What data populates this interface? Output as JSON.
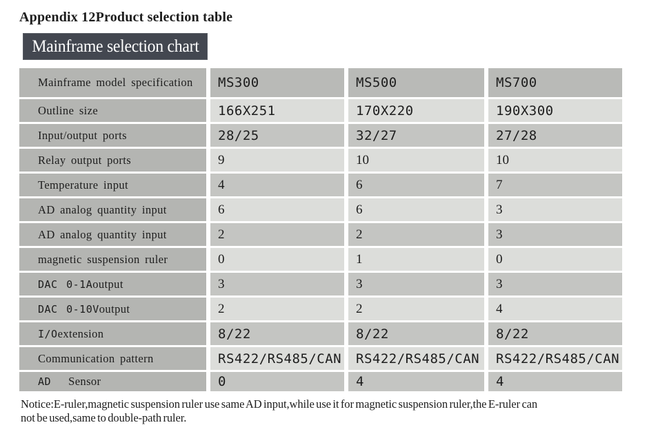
{
  "page": {
    "title": "Appendix 12Product selection table",
    "banner": "Mainframe selection chart",
    "notice_lines": [
      "Notice:E-ruler,magnetic suspension ruler use same AD input,while use it for magnetic suspension ruler,the E-ruler can",
      "not be used,same to double-path ruler."
    ]
  },
  "colors": {
    "banner_bg": "#434750",
    "banner_text": "#ffffff",
    "label_cell_bg": "#b4b5b2",
    "header_value_bg": "#b9bab7",
    "dark_value_bg": "#c4c5c2",
    "light_value_bg": "#dcddda",
    "text": "#1d1d1d",
    "page_bg": "#ffffff"
  },
  "table": {
    "columns": [
      "MS300",
      "MS500",
      "MS700"
    ],
    "rows": [
      {
        "label_mono": "",
        "label": "Mainframe model specification",
        "values": [
          "MS300",
          "MS500",
          "MS700"
        ],
        "value_font": "mono",
        "shade": "header",
        "tall": true
      },
      {
        "label_mono": "",
        "label": "Outline size",
        "values": [
          "166X251",
          "170X220",
          "190X300"
        ],
        "value_font": "mono",
        "shade": "light"
      },
      {
        "label_mono": "",
        "label": "Input/output ports",
        "values": [
          "28/25",
          "32/27",
          "27/28"
        ],
        "value_font": "mono",
        "shade": "dark"
      },
      {
        "label_mono": "",
        "label": "Relay output ports",
        "values": [
          "9",
          "10",
          "10"
        ],
        "value_font": "serif",
        "shade": "light"
      },
      {
        "label_mono": "",
        "label": "Temperature input",
        "values": [
          "4",
          "6",
          "7"
        ],
        "value_font": "serif",
        "shade": "dark"
      },
      {
        "label_mono": "",
        "label": "AD analog quantity input",
        "values": [
          "6",
          "6",
          "3"
        ],
        "value_font": "serif",
        "shade": "light"
      },
      {
        "label_mono": "",
        "label": "AD analog quantity input",
        "values": [
          "2",
          "2",
          "3"
        ],
        "value_font": "serif",
        "shade": "dark"
      },
      {
        "label_mono": "",
        "label": "magnetic suspension ruler",
        "values": [
          "0",
          "1",
          "0"
        ],
        "value_font": "serif",
        "shade": "light"
      },
      {
        "label_mono": "DAC 0-1A",
        "label": "output",
        "values": [
          "3",
          "3",
          "3"
        ],
        "value_font": "serif",
        "shade": "dark"
      },
      {
        "label_mono": "DAC 0-10V",
        "label": "output",
        "values": [
          "2",
          "2",
          "4"
        ],
        "value_font": "serif",
        "shade": "light"
      },
      {
        "label_mono": "I/O",
        "label": "extension",
        "values": [
          "8/22",
          "8/22",
          "8/22"
        ],
        "value_font": "mono",
        "shade": "dark"
      },
      {
        "label_mono": "",
        "label": "Communication pattern",
        "values": [
          "RS422/RS485/CAN",
          "RS422/RS485/CAN",
          "RS422/RS485/CAN"
        ],
        "value_font": "mono",
        "shade": "light"
      },
      {
        "label_mono": "AD  ",
        "label": "Sensor",
        "values": [
          "0",
          "4",
          "4"
        ],
        "value_font": "mono",
        "shade": "dark"
      }
    ]
  }
}
